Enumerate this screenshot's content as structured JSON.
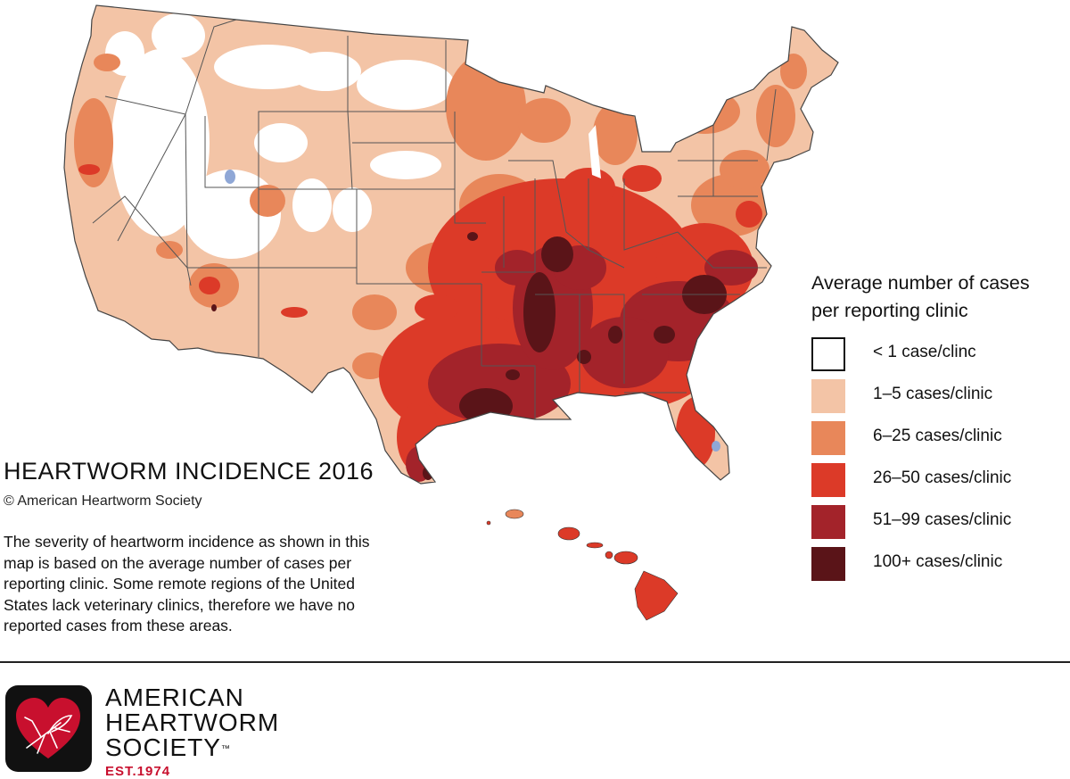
{
  "map": {
    "title": "HEARTWORM INCIDENCE 2016",
    "copyright": "©  American Heartworm Society",
    "description": "The severity of heartworm incidence as shown in this map is based on the average number of cases per reporting clinic. Some remote regions of the United States lack veterinary clinics, therefore we have no reported cases from these areas."
  },
  "legend": {
    "title_line1": "Average number of cases",
    "title_line2": "per reporting clinic",
    "items": [
      {
        "label": "< 1 case/clinc",
        "color": "#ffffff"
      },
      {
        "label": "1–5 cases/clinic",
        "color": "#f3c4a6"
      },
      {
        "label": "6–25 cases/clinic",
        "color": "#e8875a"
      },
      {
        "label": "26–50 cases/clinic",
        "color": "#dc3a28"
      },
      {
        "label": "51–99 cases/clinic",
        "color": "#a3232a"
      },
      {
        "label": "100+ cases/clinic",
        "color": "#5a1418"
      }
    ]
  },
  "org": {
    "line1": "AMERICAN",
    "line2": "HEARTWORM",
    "line3": "SOCIETY",
    "tm": "™",
    "est": "EST.1974",
    "brand_color": "#c8102e"
  },
  "colors": {
    "border": "#555555",
    "water": "#8fa7d6"
  }
}
